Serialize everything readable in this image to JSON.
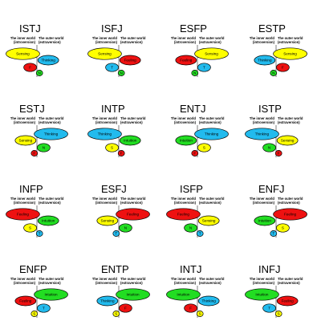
{
  "world_labels": {
    "inner_line1": "The inner world",
    "inner_line2": "(introversion)",
    "outer_line1": "The outer world",
    "outer_line2": "(extraversion)"
  },
  "colors": {
    "Sensing": "#ffff00",
    "Thinking": "#22bbee",
    "Feeling": "#ee1111",
    "Intuition": "#22dd22"
  },
  "letters": {
    "Sensing": "S",
    "Thinking": "T",
    "Feeling": "F",
    "Intuition": "N"
  },
  "types": [
    {
      "name": "ISTJ",
      "functions": [
        {
          "f": "Sensing",
          "side": "inner"
        },
        {
          "f": "Thinking",
          "side": "outer"
        },
        {
          "f": "Feeling",
          "side": "inner"
        },
        {
          "f": "Intuition",
          "side": "outer"
        }
      ]
    },
    {
      "name": "ISFJ",
      "functions": [
        {
          "f": "Sensing",
          "side": "inner"
        },
        {
          "f": "Feeling",
          "side": "outer"
        },
        {
          "f": "Thinking",
          "side": "inner"
        },
        {
          "f": "Intuition",
          "side": "outer"
        }
      ]
    },
    {
      "name": "ESFP",
      "functions": [
        {
          "f": "Sensing",
          "side": "outer"
        },
        {
          "f": "Feeling",
          "side": "inner"
        },
        {
          "f": "Thinking",
          "side": "outer"
        },
        {
          "f": "Intuition",
          "side": "inner"
        }
      ]
    },
    {
      "name": "ESTP",
      "functions": [
        {
          "f": "Sensing",
          "side": "outer"
        },
        {
          "f": "Thinking",
          "side": "inner"
        },
        {
          "f": "Feeling",
          "side": "outer"
        },
        {
          "f": "Intuition",
          "side": "inner"
        }
      ]
    },
    {
      "name": "ESTJ",
      "functions": [
        {
          "f": "Thinking",
          "side": "outer"
        },
        {
          "f": "Sensing",
          "side": "inner"
        },
        {
          "f": "Intuition",
          "side": "outer"
        },
        {
          "f": "Feeling",
          "side": "inner"
        }
      ]
    },
    {
      "name": "INTP",
      "functions": [
        {
          "f": "Thinking",
          "side": "inner"
        },
        {
          "f": "Intuition",
          "side": "outer"
        },
        {
          "f": "Sensing",
          "side": "inner"
        },
        {
          "f": "Feeling",
          "side": "outer"
        }
      ]
    },
    {
      "name": "ENTJ",
      "functions": [
        {
          "f": "Thinking",
          "side": "outer"
        },
        {
          "f": "Intuition",
          "side": "inner"
        },
        {
          "f": "Sensing",
          "side": "outer"
        },
        {
          "f": "Feeling",
          "side": "inner"
        }
      ]
    },
    {
      "name": "ISTP",
      "functions": [
        {
          "f": "Thinking",
          "side": "inner"
        },
        {
          "f": "Sensing",
          "side": "outer"
        },
        {
          "f": "Intuition",
          "side": "inner"
        },
        {
          "f": "Feeling",
          "side": "outer"
        }
      ]
    },
    {
      "name": "INFP",
      "functions": [
        {
          "f": "Feeling",
          "side": "inner"
        },
        {
          "f": "Intuition",
          "side": "outer"
        },
        {
          "f": "Sensing",
          "side": "inner"
        },
        {
          "f": "Thinking",
          "side": "outer"
        }
      ]
    },
    {
      "name": "ESFJ",
      "functions": [
        {
          "f": "Feeling",
          "side": "outer"
        },
        {
          "f": "Sensing",
          "side": "inner"
        },
        {
          "f": "Intuition",
          "side": "outer"
        },
        {
          "f": "Thinking",
          "side": "inner"
        }
      ]
    },
    {
      "name": "ISFP",
      "functions": [
        {
          "f": "Feeling",
          "side": "inner"
        },
        {
          "f": "Sensing",
          "side": "outer"
        },
        {
          "f": "Intuition",
          "side": "inner"
        },
        {
          "f": "Thinking",
          "side": "outer"
        }
      ]
    },
    {
      "name": "ENFJ",
      "functions": [
        {
          "f": "Feeling",
          "side": "outer"
        },
        {
          "f": "Intuition",
          "side": "inner"
        },
        {
          "f": "Sensing",
          "side": "outer"
        },
        {
          "f": "Thinking",
          "side": "inner"
        }
      ]
    },
    {
      "name": "ENFP",
      "functions": [
        {
          "f": "Intuition",
          "side": "outer"
        },
        {
          "f": "Feeling",
          "side": "inner"
        },
        {
          "f": "Thinking",
          "side": "outer"
        },
        {
          "f": "Sensing",
          "side": "inner"
        }
      ]
    },
    {
      "name": "ENTP",
      "functions": [
        {
          "f": "Intuition",
          "side": "outer"
        },
        {
          "f": "Thinking",
          "side": "inner"
        },
        {
          "f": "Feeling",
          "side": "outer"
        },
        {
          "f": "Sensing",
          "side": "inner"
        }
      ]
    },
    {
      "name": "INTJ",
      "functions": [
        {
          "f": "Intuition",
          "side": "inner"
        },
        {
          "f": "Thinking",
          "side": "outer"
        },
        {
          "f": "Feeling",
          "side": "inner"
        },
        {
          "f": "Sensing",
          "side": "outer"
        }
      ]
    },
    {
      "name": "INFJ",
      "functions": [
        {
          "f": "Intuition",
          "side": "inner"
        },
        {
          "f": "Feeling",
          "side": "outer"
        },
        {
          "f": "Thinking",
          "side": "inner"
        },
        {
          "f": "Sensing",
          "side": "outer"
        }
      ]
    }
  ]
}
